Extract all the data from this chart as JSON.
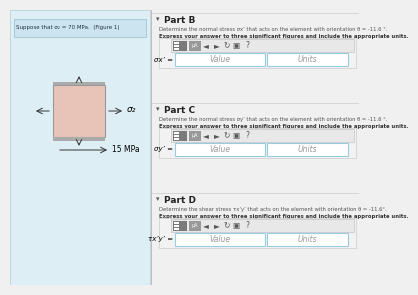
{
  "bg_color": "#f0f0f0",
  "left_panel_bg": "#ddeef5",
  "left_panel_border": "#b0cdd8",
  "box_fill": "#e8c4b8",
  "box_edge": "#999999",
  "stress_label_right": "σ₂",
  "stress_label_bottom": "15 MPa",
  "left_text": "Suppose that σ₂ = 70 MPa.  (Figure 1)",
  "part_b_header": "Part B",
  "part_b_desc": "Determine the normal stress σx’ that acts on the element with orientation θ = -11.6 °.",
  "part_b_express": "Express your answer to three significant figures and include the appropriate units.",
  "part_b_label": "σx’ =",
  "part_c_header": "Part C",
  "part_c_desc": "Determine the normal stress σy’ that acts on the element with orientation θ = -11.6 °.",
  "part_c_express": "Express your answer to three significant figures and include the appropriate units.",
  "part_c_label": "σy’ =",
  "part_d_header": "Part D",
  "part_d_desc": "Determine the shear stress τx’y’ that acts on the element with orientation θ = -11.6°.",
  "part_d_express": "Express your answer to three significant figures and include the appropriate units.",
  "part_d_label": "τx’y’ =",
  "value_text": "Value",
  "units_text": "Units",
  "panel_section_bg": "#ebebeb",
  "panel_section_border": "#cccccc",
  "input_bg": "#ffffff",
  "input_border": "#99cce0",
  "toolbar_bg1": "#7a7a7a",
  "toolbar_bg2": "#999999",
  "toolbar_light": "#e8e8e8",
  "divider_color": "#dddddd",
  "text_dark": "#333333",
  "text_mid": "#555555",
  "text_light": "#888888",
  "arrow_color": "#333333"
}
